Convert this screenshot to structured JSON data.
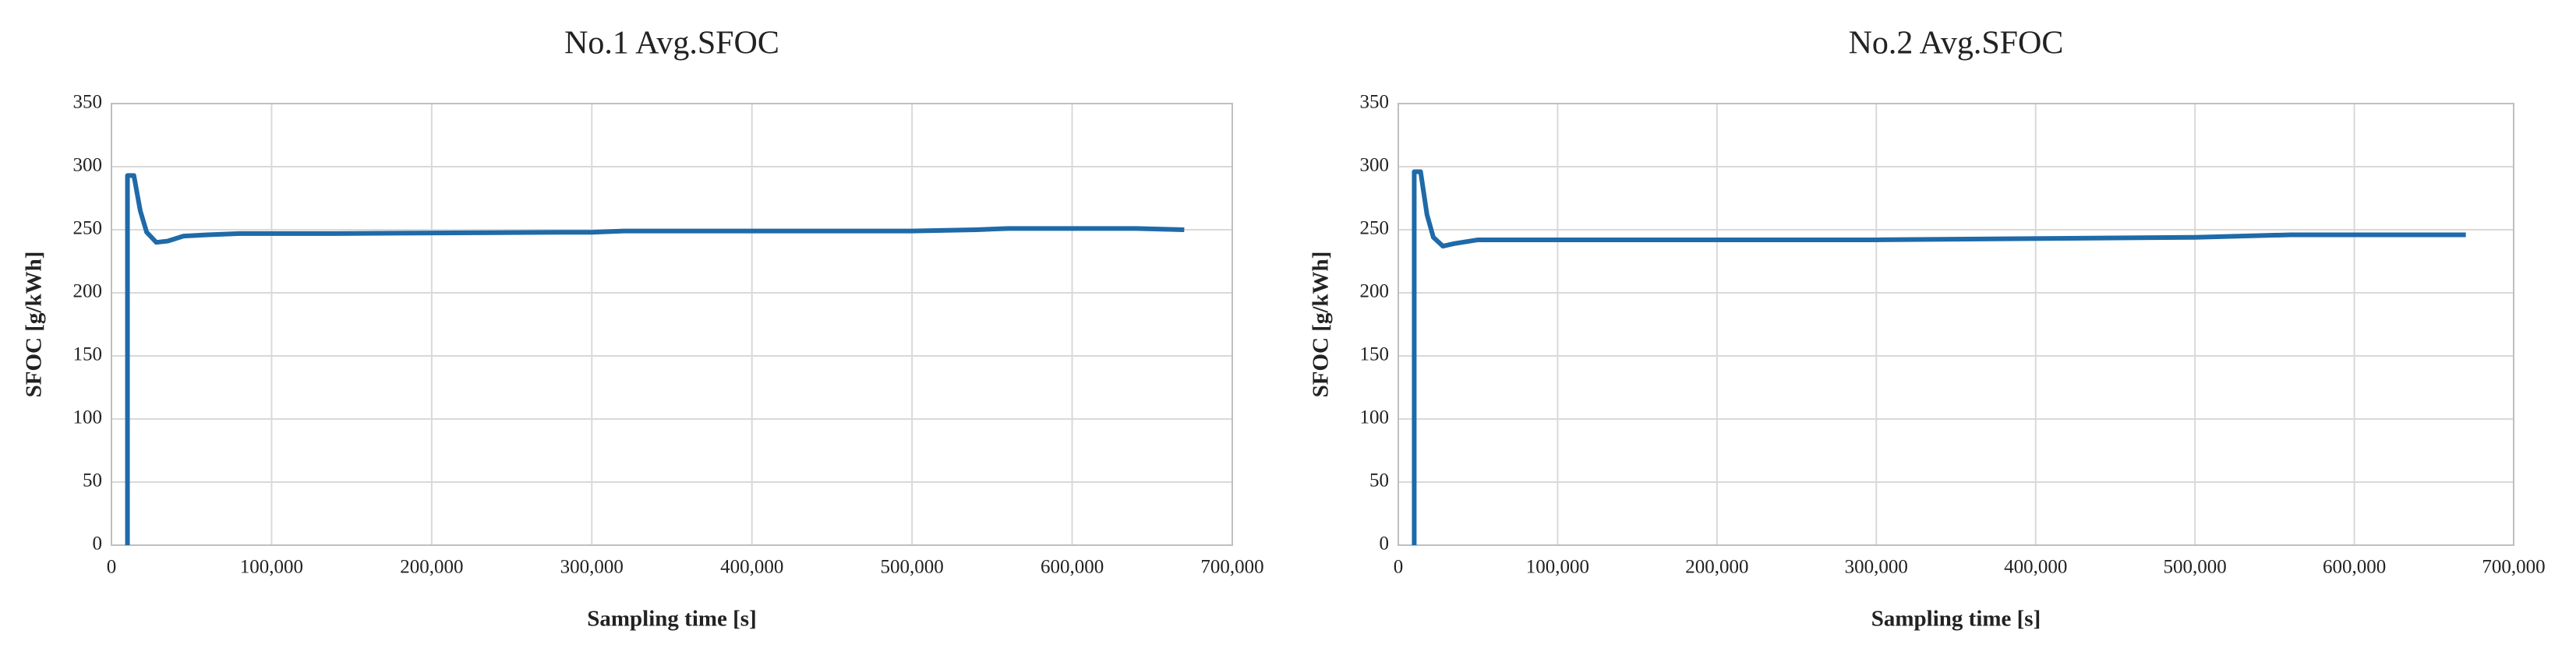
{
  "chart_data": [
    {
      "type": "line",
      "title": "No.1 Avg.SFOC",
      "x_label": "Sampling time [s]",
      "y_label": "SFOC [g/kWh]",
      "x": [
        10000,
        10000,
        14000,
        18000,
        22000,
        28000,
        35000,
        45000,
        60000,
        80000,
        140000,
        280000,
        300000,
        320000,
        500000,
        540000,
        560000,
        640000,
        670000
      ],
      "values": [
        0,
        293,
        293,
        265,
        248,
        240,
        241,
        245,
        246,
        247,
        247,
        248,
        248,
        249,
        249,
        250,
        251,
        251,
        250
      ],
      "color": "#1f6aa8",
      "xlim": [
        0,
        700000
      ],
      "ylim": [
        0,
        350
      ],
      "xticks": [
        0,
        {
          "value": 100000,
          "label": "100,000"
        },
        {
          "value": 200000,
          "label": "200,000"
        },
        {
          "value": 300000,
          "label": "300,000"
        },
        {
          "value": 400000,
          "label": "400,000"
        },
        {
          "value": 500000,
          "label": "500,000"
        },
        {
          "value": 600000,
          "label": "600,000"
        },
        {
          "value": 700000,
          "label": "700,000"
        }
      ],
      "yticks": [
        0,
        50,
        100,
        150,
        200,
        250,
        300,
        350
      ],
      "grid": true
    },
    {
      "type": "line",
      "title": "No.2 Avg.SFOC",
      "x_label": "Sampling time [s]",
      "y_label": "SFOC [g/kWh]",
      "x": [
        10000,
        10000,
        14000,
        18000,
        22000,
        28000,
        35000,
        50000,
        80000,
        140000,
        300000,
        500000,
        560000,
        670000
      ],
      "values": [
        0,
        296,
        296,
        262,
        244,
        237,
        239,
        242,
        242,
        242,
        242,
        244,
        246,
        246
      ],
      "color": "#1f6aa8",
      "xlim": [
        0,
        700000
      ],
      "ylim": [
        0,
        350
      ],
      "xticks": [
        0,
        {
          "value": 100000,
          "label": "100,000"
        },
        {
          "value": 200000,
          "label": "200,000"
        },
        {
          "value": 300000,
          "label": "300,000"
        },
        {
          "value": 400000,
          "label": "400,000"
        },
        {
          "value": 500000,
          "label": "500,000"
        },
        {
          "value": 600000,
          "label": "600,000"
        },
        {
          "value": 700000,
          "label": "700,000"
        }
      ],
      "yticks": [
        0,
        50,
        100,
        150,
        200,
        250,
        300,
        350
      ],
      "grid": true
    }
  ]
}
